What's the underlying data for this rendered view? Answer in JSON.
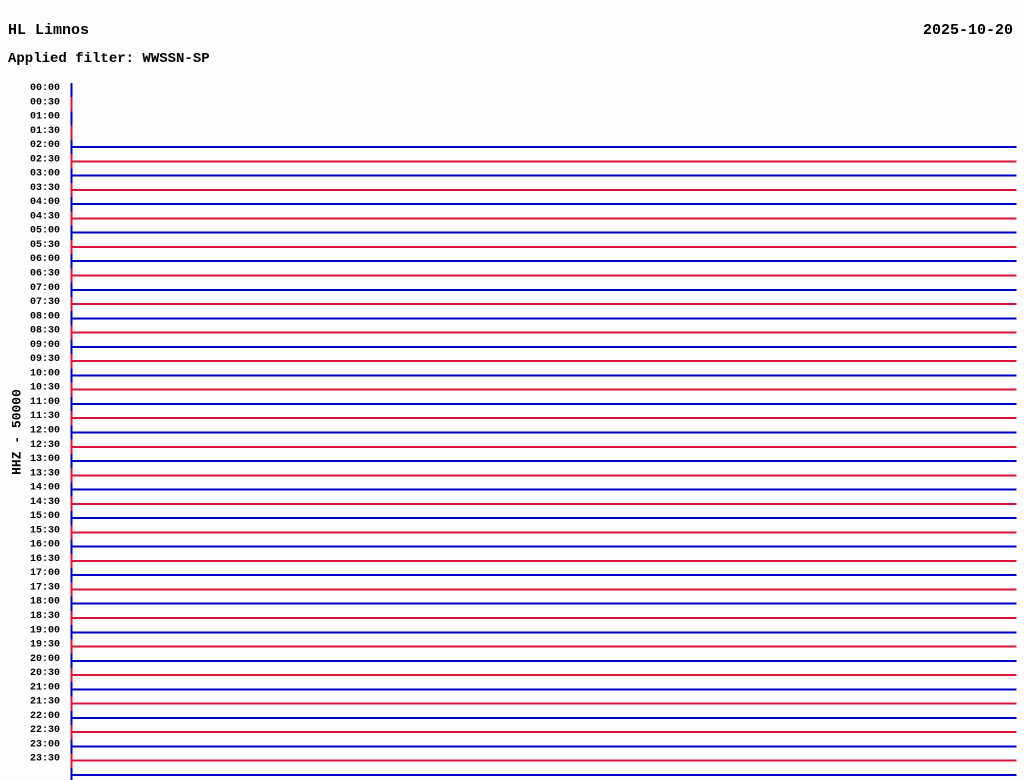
{
  "header": {
    "station_title": "HL Limnos",
    "filter_line": "Applied filter: WWSSN-SP",
    "date": "2025-10-20"
  },
  "chart_data": {
    "type": "line",
    "subtype": "helicorder",
    "title": "HL Limnos",
    "subtitle": "Applied filter: WWSSN-SP",
    "date": "2025-10-20",
    "ylabel": "HHZ - 50000",
    "channel": "HHZ",
    "amplitude_scale": 50000,
    "row_span_minutes": 30,
    "rows_per_day": 48,
    "grid": "off",
    "legend": "none",
    "note": "All visible traces are flat zero-amplitude horizontal lines; rows 00:00-01:30 contain no trace data; one extra unlabeled partial row is drawn below 23:30.",
    "colors": {
      "blue": "#0000c8",
      "red": "#dc143c",
      "text": "#000000",
      "background": "#fdfdfd"
    },
    "rows": [
      {
        "label": "00:00",
        "color": "blue",
        "trace": false
      },
      {
        "label": "00:30",
        "color": "red",
        "trace": false
      },
      {
        "label": "01:00",
        "color": "blue",
        "trace": false
      },
      {
        "label": "01:30",
        "color": "red",
        "trace": false
      },
      {
        "label": "02:00",
        "color": "blue",
        "trace": true
      },
      {
        "label": "02:30",
        "color": "red",
        "trace": true
      },
      {
        "label": "03:00",
        "color": "blue",
        "trace": true
      },
      {
        "label": "03:30",
        "color": "red",
        "trace": true
      },
      {
        "label": "04:00",
        "color": "blue",
        "trace": true
      },
      {
        "label": "04:30",
        "color": "red",
        "trace": true
      },
      {
        "label": "05:00",
        "color": "blue",
        "trace": true
      },
      {
        "label": "05:30",
        "color": "red",
        "trace": true
      },
      {
        "label": "06:00",
        "color": "blue",
        "trace": true
      },
      {
        "label": "06:30",
        "color": "red",
        "trace": true
      },
      {
        "label": "07:00",
        "color": "blue",
        "trace": true
      },
      {
        "label": "07:30",
        "color": "red",
        "trace": true
      },
      {
        "label": "08:00",
        "color": "blue",
        "trace": true
      },
      {
        "label": "08:30",
        "color": "red",
        "trace": true
      },
      {
        "label": "09:00",
        "color": "blue",
        "trace": true
      },
      {
        "label": "09:30",
        "color": "red",
        "trace": true
      },
      {
        "label": "10:00",
        "color": "blue",
        "trace": true
      },
      {
        "label": "10:30",
        "color": "red",
        "trace": true
      },
      {
        "label": "11:00",
        "color": "blue",
        "trace": true
      },
      {
        "label": "11:30",
        "color": "red",
        "trace": true
      },
      {
        "label": "12:00",
        "color": "blue",
        "trace": true
      },
      {
        "label": "12:30",
        "color": "red",
        "trace": true
      },
      {
        "label": "13:00",
        "color": "blue",
        "trace": true
      },
      {
        "label": "13:30",
        "color": "red",
        "trace": true
      },
      {
        "label": "14:00",
        "color": "blue",
        "trace": true
      },
      {
        "label": "14:30",
        "color": "red",
        "trace": true
      },
      {
        "label": "15:00",
        "color": "blue",
        "trace": true
      },
      {
        "label": "15:30",
        "color": "red",
        "trace": true
      },
      {
        "label": "16:00",
        "color": "blue",
        "trace": true
      },
      {
        "label": "16:30",
        "color": "red",
        "trace": true
      },
      {
        "label": "17:00",
        "color": "blue",
        "trace": true
      },
      {
        "label": "17:30",
        "color": "red",
        "trace": true
      },
      {
        "label": "18:00",
        "color": "blue",
        "trace": true
      },
      {
        "label": "18:30",
        "color": "red",
        "trace": true
      },
      {
        "label": "19:00",
        "color": "blue",
        "trace": true
      },
      {
        "label": "19:30",
        "color": "red",
        "trace": true
      },
      {
        "label": "20:00",
        "color": "blue",
        "trace": true
      },
      {
        "label": "20:30",
        "color": "red",
        "trace": true
      },
      {
        "label": "21:00",
        "color": "blue",
        "trace": true
      },
      {
        "label": "21:30",
        "color": "red",
        "trace": true
      },
      {
        "label": "22:00",
        "color": "blue",
        "trace": true
      },
      {
        "label": "22:30",
        "color": "red",
        "trace": true
      },
      {
        "label": "23:00",
        "color": "blue",
        "trace": true
      },
      {
        "label": "23:30",
        "color": "red",
        "trace": true
      },
      {
        "label": "",
        "color": "blue",
        "trace": true
      }
    ]
  }
}
